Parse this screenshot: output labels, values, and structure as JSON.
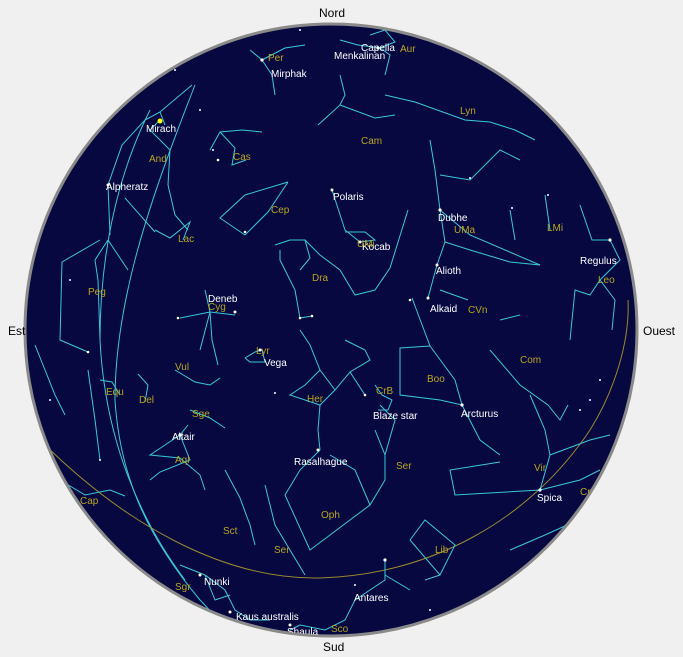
{
  "compass": {
    "north": "Nord",
    "south": "Sud",
    "east": "Est",
    "west": "Ouest"
  },
  "colors": {
    "sky": "#06083f",
    "constellation_lines": "#38c8d8",
    "ecliptic": "#9a8a30",
    "star_labels": "#ffffff",
    "constellation_labels": "#b8a520",
    "rim": "#8a8a8a",
    "highlight_star": "#ffff00"
  },
  "stars": [
    {
      "id": "mirach",
      "name": "Mirach"
    },
    {
      "id": "alpheratz",
      "name": "Alpheratz"
    },
    {
      "id": "mirphak",
      "name": "Mirphak"
    },
    {
      "id": "menkalinan",
      "name": "Menkalinan"
    },
    {
      "id": "capella",
      "name": "Capella"
    },
    {
      "id": "polaris",
      "name": "Polaris"
    },
    {
      "id": "kocab",
      "name": "Kocab"
    },
    {
      "id": "dubhe",
      "name": "Dubhe"
    },
    {
      "id": "alioth",
      "name": "Alioth"
    },
    {
      "id": "alkaid",
      "name": "Alkaid"
    },
    {
      "id": "regulus",
      "name": "Regulus"
    },
    {
      "id": "deneb",
      "name": "Deneb"
    },
    {
      "id": "vega",
      "name": "Vega"
    },
    {
      "id": "altair",
      "name": "Altair"
    },
    {
      "id": "rasalhague",
      "name": "Rasalhague"
    },
    {
      "id": "blaze-star",
      "name": "Blaze star"
    },
    {
      "id": "arcturus",
      "name": "Arcturus"
    },
    {
      "id": "spica",
      "name": "Spica"
    },
    {
      "id": "antares",
      "name": "Antares"
    },
    {
      "id": "nunki",
      "name": "Nunki"
    },
    {
      "id": "kaus-australis",
      "name": "Kaus australis"
    },
    {
      "id": "shaula",
      "name": "Shaula"
    }
  ],
  "constellations": [
    {
      "id": "per",
      "abbr": "Per"
    },
    {
      "id": "aur",
      "abbr": "Aur"
    },
    {
      "id": "lyn",
      "abbr": "Lyn"
    },
    {
      "id": "cam",
      "abbr": "Cam"
    },
    {
      "id": "and",
      "abbr": "And"
    },
    {
      "id": "cas",
      "abbr": "Cas"
    },
    {
      "id": "cep",
      "abbr": "Cep"
    },
    {
      "id": "lac",
      "abbr": "Lac"
    },
    {
      "id": "umi",
      "abbr": "UMi"
    },
    {
      "id": "uma",
      "abbr": "UMa"
    },
    {
      "id": "lmi",
      "abbr": "LMi"
    },
    {
      "id": "leo",
      "abbr": "Leo"
    },
    {
      "id": "peg",
      "abbr": "Peg"
    },
    {
      "id": "dra",
      "abbr": "Dra"
    },
    {
      "id": "cyg",
      "abbr": "Cyg"
    },
    {
      "id": "cvn",
      "abbr": "CVn"
    },
    {
      "id": "com",
      "abbr": "Com"
    },
    {
      "id": "lyr",
      "abbr": "Lyr"
    },
    {
      "id": "vul",
      "abbr": "Vul"
    },
    {
      "id": "equ",
      "abbr": "Equ"
    },
    {
      "id": "del",
      "abbr": "Del"
    },
    {
      "id": "her",
      "abbr": "Her"
    },
    {
      "id": "crb",
      "abbr": "CrB"
    },
    {
      "id": "boo",
      "abbr": "Boo"
    },
    {
      "id": "sge",
      "abbr": "Sge"
    },
    {
      "id": "aql",
      "abbr": "Aql"
    },
    {
      "id": "ser1",
      "abbr": "Ser"
    },
    {
      "id": "vir",
      "abbr": "Vir"
    },
    {
      "id": "cap",
      "abbr": "Cap"
    },
    {
      "id": "oph",
      "abbr": "Oph"
    },
    {
      "id": "sct",
      "abbr": "Sct"
    },
    {
      "id": "ser2",
      "abbr": "Ser"
    },
    {
      "id": "lib",
      "abbr": "Lib"
    },
    {
      "id": "crv",
      "abbr": "Cr"
    },
    {
      "id": "sgr",
      "abbr": "Sgr"
    },
    {
      "id": "sco",
      "abbr": "Sco"
    }
  ]
}
